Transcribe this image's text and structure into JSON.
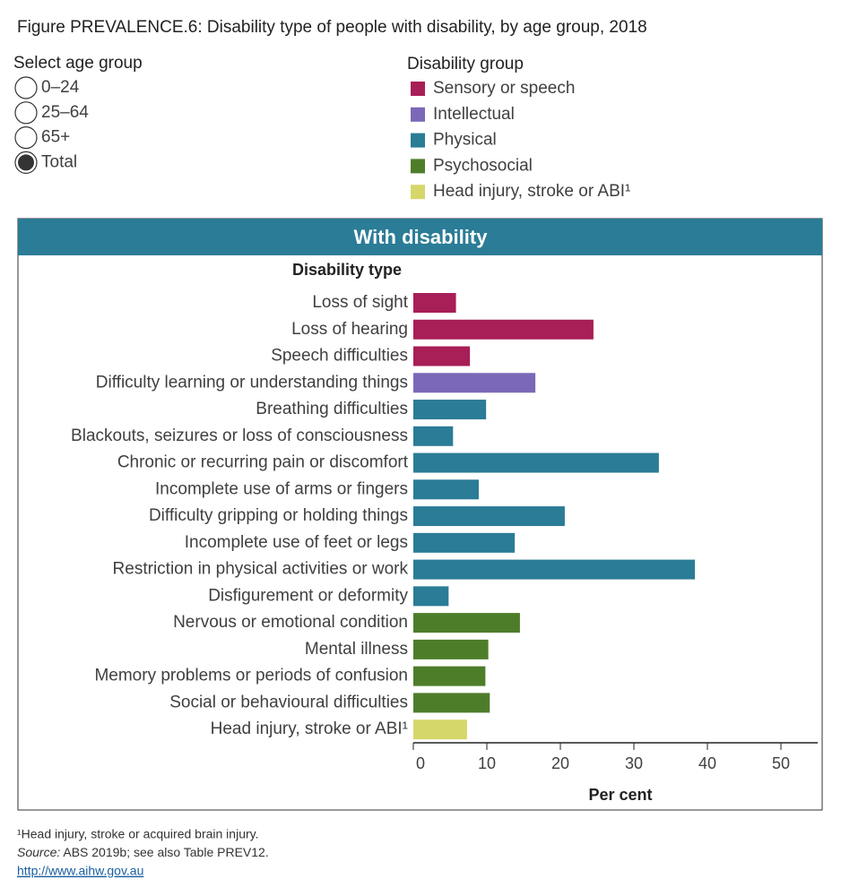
{
  "chart_data": {
    "type": "bar",
    "orientation": "horizontal",
    "title": "Figure PREVALENCE.6: Disability type of people with disability, by age group, 2018",
    "age_selector": {
      "label": "Select age group",
      "options": [
        "0–24",
        "25–64",
        "65+",
        "Total"
      ],
      "selected": 3
    },
    "legend_title": "Disability group",
    "panel_title": "With disability",
    "category_axis_label": "Disability type",
    "x_axis_label": "Per cent",
    "categories": [
      "Loss of sight",
      "Loss of hearing",
      "Speech difficulties",
      "Difficulty learning or understanding things",
      "Breathing difficulties",
      "Blackouts, seizures or loss of consciousness",
      "Chronic or recurring pain or discomfort",
      "Incomplete use of arms or fingers",
      "Difficulty gripping or holding things",
      "Incomplete use of feet or legs",
      "Restriction in physical activities or work",
      "Disfigurement or deformity",
      "Nervous or emotional condition",
      "Mental illness",
      "Memory problems or periods of confusion",
      "Social or behavioural difficulties",
      "Head injury, stroke or ABI¹"
    ],
    "series": [
      {
        "name": "Sensory or speech",
        "color": "#a81e56",
        "values": [
          5.8,
          24.5,
          7.7,
          null,
          null,
          null,
          null,
          null,
          null,
          null,
          null,
          null,
          null,
          null,
          null,
          null,
          null
        ]
      },
      {
        "name": "Intellectual",
        "color": "#7b68b8",
        "values": [
          null,
          null,
          null,
          16.6,
          null,
          null,
          null,
          null,
          null,
          null,
          null,
          null,
          null,
          null,
          null,
          null,
          null
        ]
      },
      {
        "name": "Physical",
        "color": "#2b7c96",
        "values": [
          null,
          null,
          null,
          null,
          9.9,
          5.4,
          33.4,
          8.9,
          20.6,
          13.8,
          38.3,
          4.8,
          null,
          null,
          null,
          null,
          null
        ]
      },
      {
        "name": "Psychosocial",
        "color": "#4e7d2a",
        "values": [
          null,
          null,
          null,
          null,
          null,
          null,
          null,
          null,
          null,
          null,
          null,
          null,
          14.5,
          10.2,
          9.8,
          10.4,
          null
        ]
      },
      {
        "name": "Head injury, stroke or ABI¹",
        "color": "#d6d76a",
        "values": [
          null,
          null,
          null,
          null,
          null,
          null,
          null,
          null,
          null,
          null,
          null,
          null,
          null,
          null,
          null,
          null,
          7.3
        ]
      }
    ],
    "xlim": [
      0,
      55
    ],
    "xticks": [
      0,
      10,
      20,
      30,
      40,
      50
    ],
    "footnote": "¹Head injury, stroke or acquired brain injury.",
    "source_label": "Source:",
    "source_text": " ABS 2019b; see also Table PREV12.",
    "link": "http://www.aihw.gov.au"
  }
}
